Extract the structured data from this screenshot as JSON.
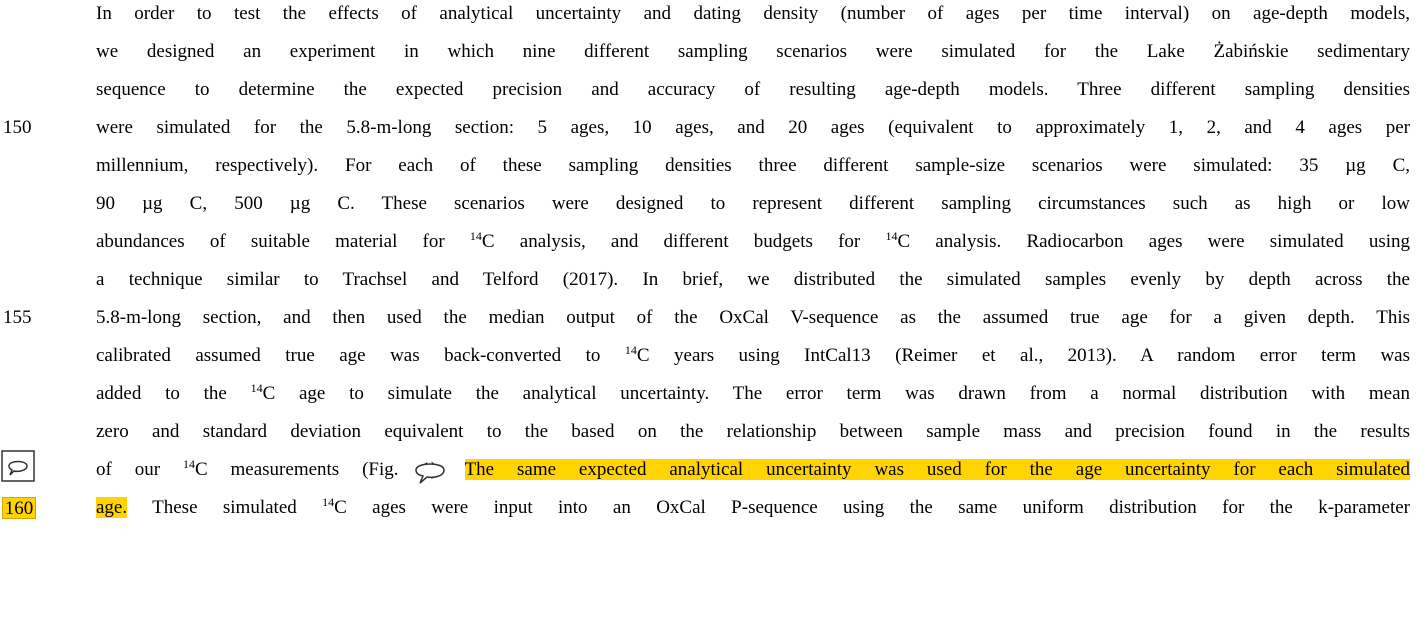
{
  "lines": [
    {
      "segments": [
        {
          "text": "In order to test the effects of analytical uncertainty and dating density (number of ages per time interval) on age-depth models,"
        }
      ]
    },
    {
      "segments": [
        {
          "text": "we designed an experiment in which nine different sampling scenarios were simulated for the Lake Żabińskie sedimentary"
        }
      ]
    },
    {
      "segments": [
        {
          "text": "sequence to determine the expected precision and accuracy of resulting age-depth models. Three different sampling densities"
        }
      ]
    },
    {
      "number": "150",
      "segments": [
        {
          "text": "were simulated for the 5.8-m-long section: 5 ages, 10 ages, and 20 ages (equivalent to approximately 1, 2, and 4 ages per"
        }
      ]
    },
    {
      "segments": [
        {
          "text": "millennium, respectively). For each of these sampling densities three different sample-size scenarios were simulated: 35 µg C,"
        }
      ]
    },
    {
      "segments": [
        {
          "text": "90 µg C, 500 µg C. These scenarios were designed to represent different sampling circumstances such as high or low"
        }
      ]
    },
    {
      "segments": [
        {
          "text": "abundances of suitable material for "
        },
        {
          "text": "14",
          "style": "sup"
        },
        {
          "text": "C analysis, and different budgets for "
        },
        {
          "text": "14",
          "style": "sup"
        },
        {
          "text": "C analysis. Radiocarbon ages were simulated using"
        }
      ]
    },
    {
      "segments": [
        {
          "text": "a technique similar to Trachsel and Telford (2017). In brief, we distributed the simulated samples evenly by depth across the"
        }
      ]
    },
    {
      "number": "155",
      "segments": [
        {
          "text": "5.8-m-long section, and then used the median output of the OxCal V-sequence as the assumed true age for a given depth. This"
        }
      ]
    },
    {
      "segments": [
        {
          "text": "calibrated assumed true age was back-converted to "
        },
        {
          "text": "14",
          "style": "sup"
        },
        {
          "text": "C years using IntCal13 (Reimer et al., 2013). A random error term was"
        }
      ]
    },
    {
      "segments": [
        {
          "text": "added to the "
        },
        {
          "text": "14",
          "style": "sup"
        },
        {
          "text": "C age to simulate the analytical uncertainty. The error term was drawn from a normal distribution with mean"
        }
      ]
    },
    {
      "segments": [
        {
          "text": "zero and standard deviation equivalent to the based on the relationship between sample mass and precision found in the results"
        }
      ]
    },
    {
      "segments": [
        {
          "text": "of our "
        },
        {
          "text": "14",
          "style": "sup"
        },
        {
          "text": "C measurements (Fig. 1). "
        },
        {
          "text": "The same expected analytical uncertainty was used for the age uncertainty for each simulated",
          "style": "highlight"
        }
      ]
    },
    {
      "number": "160",
      "number_style": "boxed",
      "segments": [
        {
          "text": "age.",
          "style": "highlight"
        },
        {
          "text": " These simulated "
        },
        {
          "text": "14",
          "style": "sup"
        },
        {
          "text": "C ages were input into an OxCal P-sequence using the same uniform distribution for the k-parameter"
        }
      ]
    }
  ]
}
